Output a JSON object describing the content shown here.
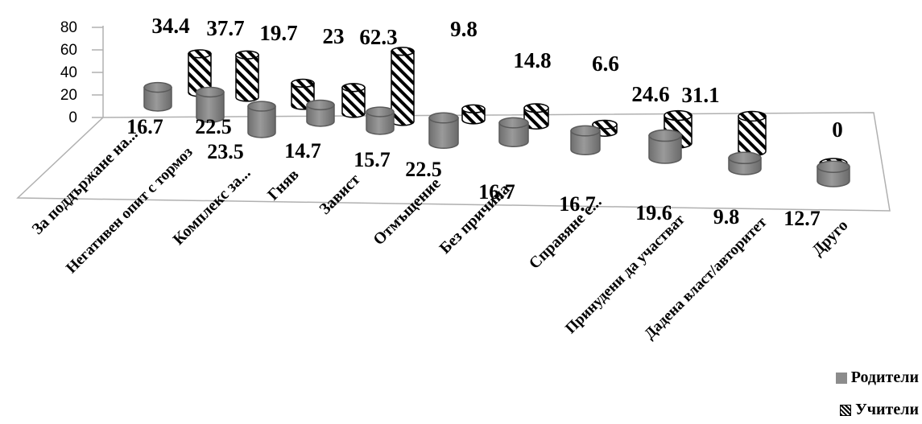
{
  "chart_data": {
    "type": "bar",
    "style": "3d-cylinder",
    "categories": [
      "За поддържане на...",
      "Негативен опит с тормоз",
      "Комплекс за...",
      "Гняв",
      "Завист",
      "Отмъщение",
      "Без причина",
      "Справяне с...",
      "Принудени да участват",
      "Дадена власт/авторитет",
      "Друго"
    ],
    "series": [
      {
        "name": "Родители",
        "values": [
          16.7,
          22.5,
          23.5,
          14.7,
          15.7,
          22.5,
          16.7,
          16.7,
          19.6,
          9.8,
          12.7
        ],
        "color": "#8c8c8c"
      },
      {
        "name": "Учители",
        "values": [
          34.4,
          37.7,
          19.7,
          23,
          62.3,
          9.8,
          14.8,
          6.6,
          24.6,
          31.1,
          0
        ],
        "color": "#000000",
        "pattern": "diagonal-hatch"
      }
    ],
    "yticks": [
      "0",
      "20",
      "40",
      "60",
      "80"
    ],
    "ylim": [
      0,
      80
    ],
    "grid": false,
    "legend_position": "bottom-right"
  }
}
